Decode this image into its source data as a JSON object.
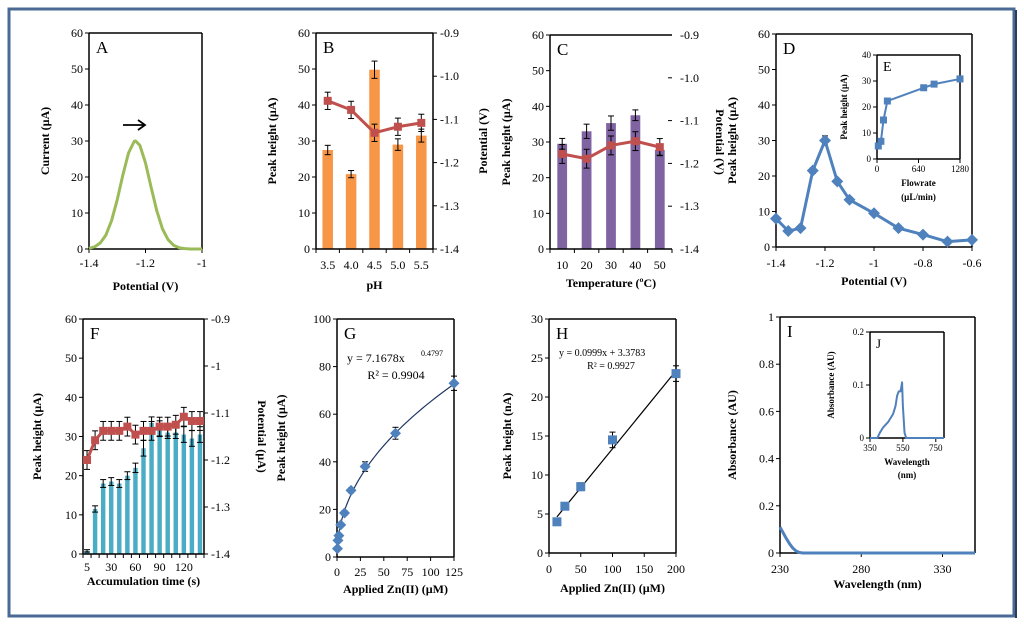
{
  "chart_data": [
    {
      "panel": "A",
      "type": "line",
      "xlabel": "Potential (V)",
      "ylabel": "Current (µA)",
      "xlim": [
        -1.4,
        -1.0
      ],
      "ylim": [
        0,
        60
      ],
      "xticks": [
        "-1.4",
        "-1.2",
        "-1"
      ],
      "yticks": [
        "0",
        "10",
        "20",
        "30",
        "40",
        "50",
        "60"
      ],
      "annotation_icon": "arrow-right",
      "series": [
        {
          "color": "#9bbb59",
          "x": [
            -1.4,
            -1.38,
            -1.36,
            -1.34,
            -1.32,
            -1.3,
            -1.28,
            -1.26,
            -1.24,
            -1.235,
            -1.22,
            -1.2,
            -1.18,
            -1.16,
            -1.14,
            -1.12,
            -1.1,
            -1.08,
            -1.06,
            -1.04,
            -1.02,
            -1.0
          ],
          "y": [
            0.2,
            0.6,
            1.7,
            3.9,
            7.9,
            13.7,
            20.6,
            26.7,
            29.9,
            30,
            28.8,
            23.9,
            17.1,
            10.6,
            5.6,
            2.6,
            1.0,
            0.3,
            0.1,
            0,
            0,
            0
          ]
        }
      ]
    },
    {
      "panel": "B",
      "type": "bar+line",
      "categories": [
        "3.5",
        "4.0",
        "4.5",
        "5.0",
        "5.5"
      ],
      "xlabel": "pH",
      "ylabel": "Peak height (µA)",
      "y2label": "Potential (V)",
      "ylim": [
        0,
        60
      ],
      "y2lim": [
        -1.4,
        -0.9
      ],
      "yticks": [
        "0",
        "10",
        "20",
        "30",
        "40",
        "50",
        "60"
      ],
      "y2ticks": [
        "-0.9",
        "-1.0",
        "-1.1",
        "-1.2",
        "-1.3",
        "-1.4"
      ],
      "bars": {
        "color": "#f79646",
        "values": [
          27.5,
          20.8,
          49.8,
          29,
          31.5
        ],
        "errors": [
          1.3,
          1.0,
          2.4,
          1.6,
          1.8
        ]
      },
      "line": {
        "color": "#c0504d",
        "values": [
          -1.057,
          -1.078,
          -1.131,
          -1.117,
          -1.108
        ],
        "errors": [
          0.02,
          0.02,
          0.02,
          0.02,
          0.02
        ]
      }
    },
    {
      "panel": "C",
      "type": "bar+line",
      "categories": [
        "10",
        "20",
        "30",
        "40",
        "50"
      ],
      "xlabel": "Temperature (ºC)",
      "ylabel": "Peak height (µA)",
      "y2label": "Potential (V)",
      "ylim": [
        0,
        60
      ],
      "y2lim": [
        -1.4,
        -0.9
      ],
      "yticks": [
        "0",
        "10",
        "20",
        "30",
        "40",
        "50",
        "60"
      ],
      "y2ticks": [
        "-0.9",
        "-1.0",
        "-1.1",
        "-1.2",
        "-1.3",
        "-1.4"
      ],
      "bars": {
        "color": "#8064a2",
        "values": [
          29.5,
          33,
          35.3,
          37.5,
          27.8
        ],
        "errors": [
          1.5,
          2,
          2,
          1.5,
          1.5
        ]
      },
      "line": {
        "color": "#c0504d",
        "values": [
          -1.178,
          -1.189,
          -1.158,
          -1.148,
          -1.162
        ],
        "errors": [
          0.022,
          0.022,
          0.022,
          0.022,
          0.02
        ]
      }
    },
    {
      "panel": "D",
      "type": "line",
      "xlabel": "Potential (V)",
      "ylabel": "Peak height (µA)",
      "xlim": [
        -1.4,
        -0.6
      ],
      "ylim": [
        0,
        60
      ],
      "xticks": [
        "-1.4",
        "-1.2",
        "-1",
        "-0.8",
        "-0.6"
      ],
      "yticks": [
        "0",
        "10",
        "20",
        "30",
        "40",
        "50",
        "60"
      ],
      "series": [
        {
          "color": "#4f81bd",
          "marker": "diamond",
          "x": [
            -1.4,
            -1.35,
            -1.3,
            -1.25,
            -1.2,
            -1.15,
            -1.1,
            -1.0,
            -0.9,
            -0.8,
            -0.7,
            -0.6
          ],
          "y": [
            8,
            4.5,
            5.3,
            21.5,
            30,
            18.5,
            13.3,
            9.5,
            5.3,
            3.5,
            1.5,
            2
          ],
          "errors": [
            0,
            0,
            0,
            0.8,
            1.3,
            0.5,
            0,
            0,
            0,
            0,
            0,
            0
          ]
        }
      ]
    },
    {
      "panel": "E",
      "type": "line",
      "inset_of": "D",
      "xlabel": "Flowrate",
      "xlabel2": "(µL/min)",
      "ylabel": "Peak height (µA)",
      "xlim": [
        0,
        1280
      ],
      "ylim": [
        0,
        40
      ],
      "xticks": [
        "0",
        "640",
        "1280"
      ],
      "yticks": [
        "0",
        "10",
        "20",
        "30",
        "40"
      ],
      "series": [
        {
          "color": "#4f81bd",
          "marker": "square",
          "x": [
            20,
            60,
            100,
            160,
            720,
            880,
            1280
          ],
          "y": [
            5,
            6.8,
            15,
            22.3,
            27.4,
            28.8,
            30.8
          ],
          "errors": [
            0.5,
            0.6,
            1,
            0.8,
            1,
            1,
            1
          ]
        }
      ]
    },
    {
      "panel": "F",
      "type": "bar+line",
      "categories": [
        "5",
        "10",
        "20",
        "30",
        "40",
        "50",
        "60",
        "70",
        "80",
        "90",
        "100",
        "110",
        "120",
        "130",
        "140"
      ],
      "xticks": [
        "5",
        "30",
        "60",
        "90",
        "120"
      ],
      "xlabel": "Accumulation time (s)",
      "ylabel": "Peak height (µA)",
      "y2label": "Potential (µA)",
      "ylim": [
        0,
        60
      ],
      "y2lim": [
        -1.4,
        -0.9
      ],
      "yticks": [
        "0",
        "10",
        "20",
        "30",
        "40",
        "50",
        "60"
      ],
      "y2ticks": [
        "-0.9",
        "-1",
        "-1.1",
        "-1.2",
        "-1.3",
        "-1.4"
      ],
      "bars": {
        "color": "#4bacc6",
        "values": [
          0.8,
          11.5,
          18,
          18.5,
          18,
          20,
          22,
          27,
          33.5,
          32,
          31,
          31,
          30.5,
          29.5,
          30.5
        ],
        "errors": [
          0.3,
          0.8,
          1,
          1,
          1,
          1,
          1.2,
          2,
          1.5,
          2,
          1.5,
          1.5,
          2,
          2,
          2
        ]
      },
      "line": {
        "color": "#c0504d",
        "values": [
          -1.2,
          -1.158,
          -1.138,
          -1.138,
          -1.138,
          -1.129,
          -1.146,
          -1.138,
          -1.138,
          -1.129,
          -1.129,
          -1.125,
          -1.108,
          -1.117,
          -1.117
        ],
        "errors": [
          0.02,
          0.02,
          0.02,
          0.02,
          0.02,
          0.02,
          0.02,
          0.02,
          0.02,
          0.02,
          0.02,
          0.02,
          0.02,
          0.02,
          0.02
        ]
      }
    },
    {
      "panel": "G",
      "type": "scatter",
      "xlabel": "Applied Zn(II) (µM)",
      "ylabel": "Peak height (µA)",
      "xlim": [
        0,
        125
      ],
      "ylim": [
        0,
        100
      ],
      "xticks": [
        "0",
        "25",
        "50",
        "75",
        "100",
        "125"
      ],
      "yticks": [
        "0",
        "20",
        "40",
        "60",
        "80",
        "100"
      ],
      "series": [
        {
          "color": "#4f81bd",
          "marker": "diamond",
          "x": [
            0.5,
            1,
            2,
            4,
            8,
            15,
            30,
            62.5,
            125
          ],
          "y": [
            3.5,
            7,
            9,
            13.5,
            18.5,
            28,
            38,
            52,
            73
          ],
          "errors": [
            0,
            0,
            0,
            0,
            1,
            1,
            2,
            2.5,
            3
          ]
        }
      ],
      "fit": {
        "kind": "power",
        "a": 7.1678,
        "b": 0.4797,
        "equation": "y = 7.1678x",
        "exponent": "0.4797",
        "r2": "R² = 0.9904",
        "color": "#1f3864"
      }
    },
    {
      "panel": "H",
      "type": "scatter",
      "xlabel": "Applied Zn(II) (µM)",
      "ylabel": "Peak height (nA)",
      "xlim": [
        0,
        200
      ],
      "ylim": [
        0,
        30
      ],
      "xticks": [
        "0",
        "50",
        "100",
        "150",
        "200"
      ],
      "yticks": [
        "0",
        "5",
        "10",
        "15",
        "20",
        "25",
        "30"
      ],
      "series": [
        {
          "color": "#4f81bd",
          "marker": "square",
          "x": [
            12.5,
            25,
            50,
            100,
            200
          ],
          "y": [
            4,
            6,
            8.5,
            14.5,
            23
          ],
          "errors": [
            0.3,
            0.3,
            0.5,
            1,
            1
          ]
        }
      ],
      "fit": {
        "kind": "linear",
        "slope": 0.0999,
        "intercept": 3.3783,
        "equation": "y = 0.0999x + 3.3783",
        "r2": "R² = 0.9927",
        "color": "#000000"
      }
    },
    {
      "panel": "I",
      "type": "line",
      "xlabel": "Wavelength (nm)",
      "ylabel": "Absorbance (AU)",
      "xlim": [
        230,
        350
      ],
      "ylim": [
        0,
        1
      ],
      "xticks": [
        "230",
        "280",
        "330"
      ],
      "yticks": [
        "0",
        "0.2",
        "0.4",
        "0.6",
        "0.8",
        "1"
      ],
      "series": [
        {
          "color": "#4f81bd",
          "x": [
            230,
            232,
            234,
            236,
            238,
            240,
            242,
            244,
            250,
            300,
            350
          ],
          "y": [
            0.11,
            0.085,
            0.06,
            0.038,
            0.02,
            0.008,
            0.002,
            0,
            0,
            0,
            0
          ]
        }
      ]
    },
    {
      "panel": "J",
      "type": "line",
      "inset_of": "I",
      "xlabel": "Wavelength",
      "xlabel2": "(nm)",
      "ylabel": "Absorbance (AU)",
      "xlim": [
        350,
        800
      ],
      "ylim": [
        0,
        0.2
      ],
      "xticks": [
        "350",
        "550",
        "750"
      ],
      "yticks": [
        "0",
        "0.1",
        "0.2"
      ],
      "series": [
        {
          "color": "#4f81bd",
          "x": [
            350,
            395,
            410,
            430,
            460,
            490,
            505,
            515,
            525,
            535,
            540,
            545,
            550,
            560,
            570,
            800
          ],
          "y": [
            0,
            0,
            0.01,
            0.02,
            0.03,
            0.045,
            0.06,
            0.08,
            0.088,
            0.088,
            0.095,
            0.105,
            0.06,
            0.01,
            0,
            0
          ]
        }
      ]
    }
  ]
}
